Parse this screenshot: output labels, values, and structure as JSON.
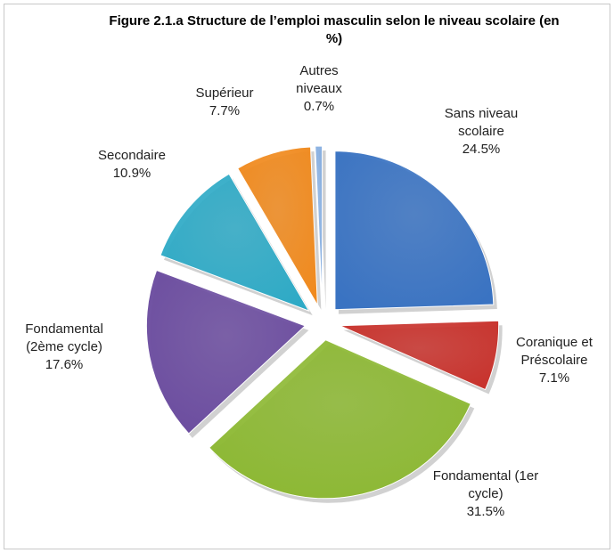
{
  "chart_data": {
    "type": "pie",
    "title": "Figure 2.1.a Structure de l’emploi masculin selon le niveau scolaire (en %)",
    "categories": [
      "Sans niveau scolaire",
      "Coranique et Préscolaire",
      "Fondamental (1er cycle)",
      "Fondamental (2ème cycle)",
      "Secondaire",
      "Supérieur",
      "Autres niveaux"
    ],
    "values": [
      24.5,
      7.1,
      31.5,
      17.6,
      10.9,
      7.7,
      0.7
    ],
    "value_labels": [
      "24.5%",
      "7.1%",
      "31.5%",
      "17.6%",
      "10.9%",
      "7.7%",
      "0.7%"
    ],
    "colors": [
      "#3a73c2",
      "#c8322c",
      "#8cb832",
      "#6b4c9f",
      "#2eaac6",
      "#f08a1e",
      "#86aee0"
    ]
  }
}
